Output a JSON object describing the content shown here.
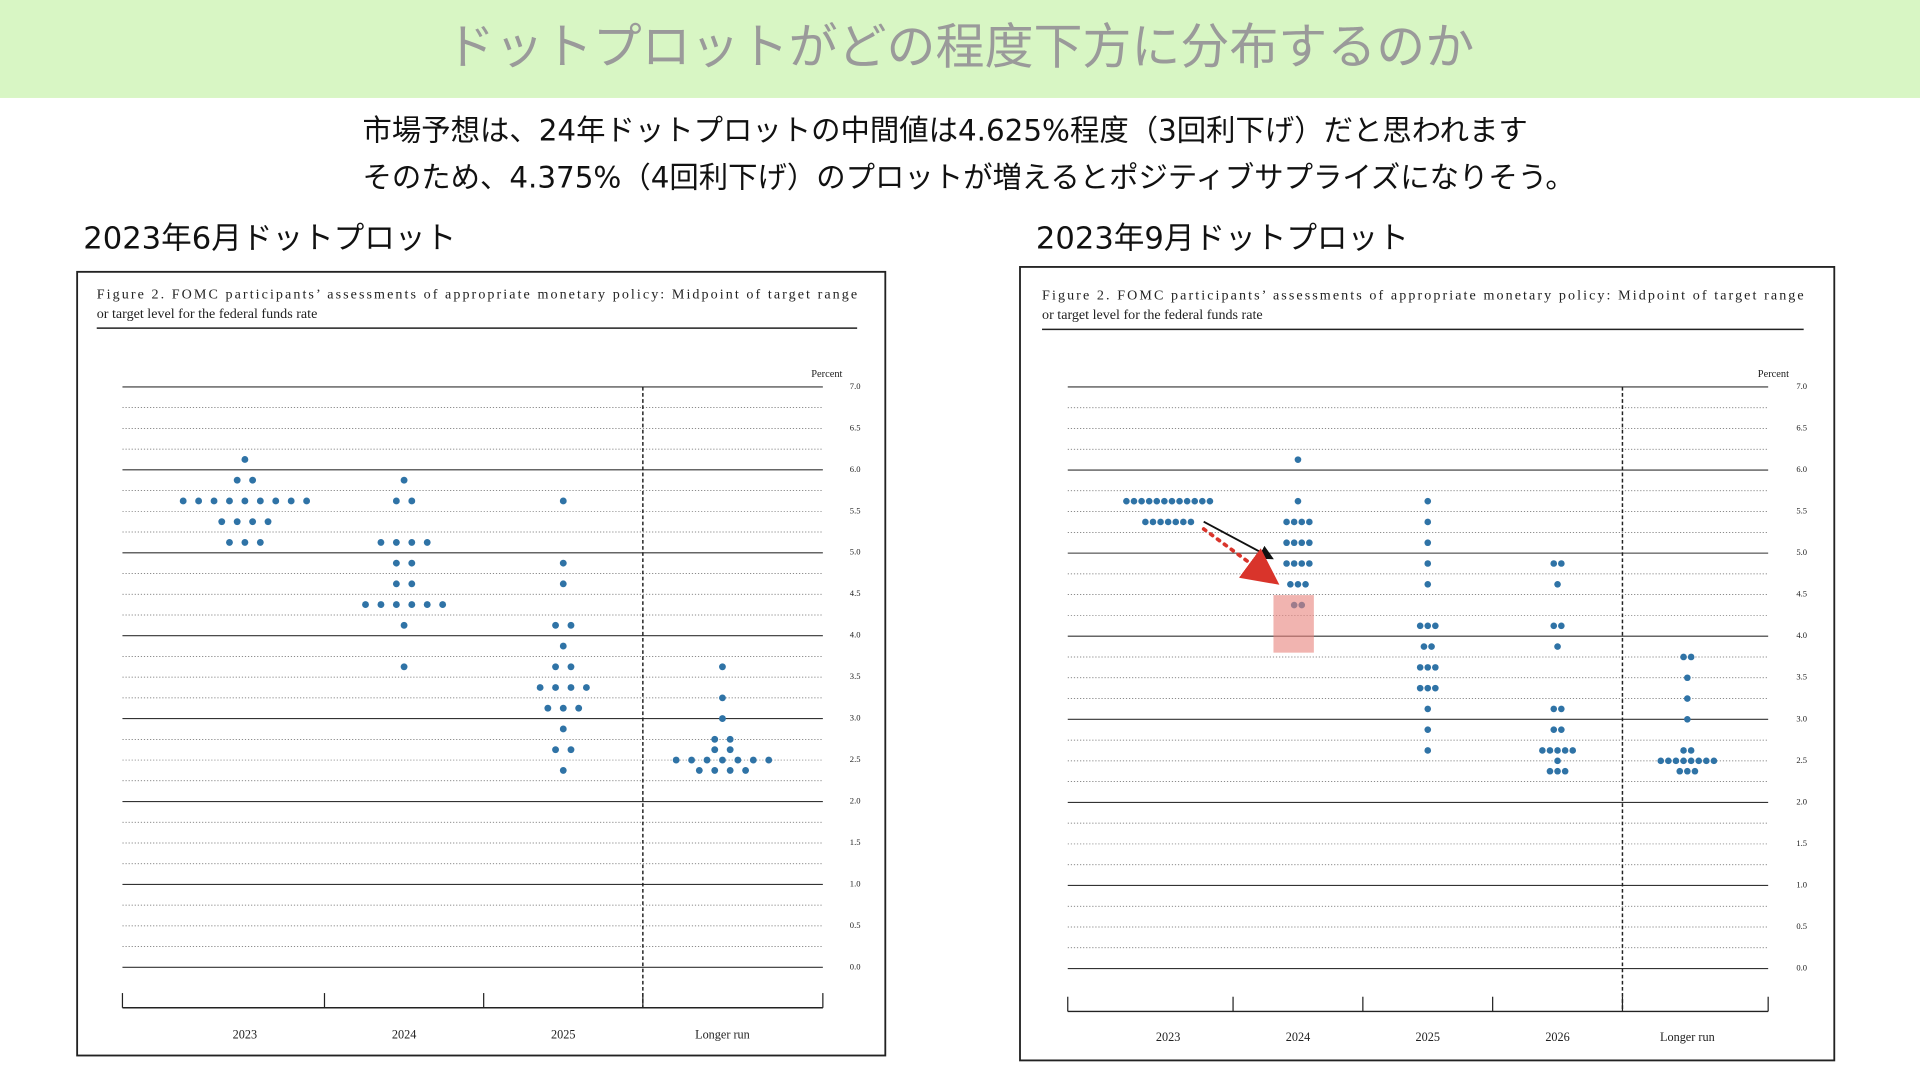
{
  "header": {
    "title": "ドットプロットがどの程度下方に分布するのか",
    "lines": [
      "市場予想は、24年ドットプロットの中間値は4.625%程度（3回利下げ）だと思われます",
      "そのため、4.375%（4回利下げ）のプロットが増えるとポジティブサプライズになりそう。"
    ]
  },
  "chart_data": [
    {
      "type": "dot",
      "title": "2023年6月ドットプロット",
      "figure_title": [
        "Figure 2.  FOMC participants’ assessments of appropriate monetary policy:  Midpoint of target range",
        "or target level for the federal funds rate"
      ],
      "ylabel": "Percent",
      "color": "#2f73a6",
      "categories": [
        "2023",
        "2024",
        "2025",
        "Longer run"
      ],
      "values": [
        [
          6.125,
          5.875,
          5.875,
          5.625,
          5.625,
          5.625,
          5.625,
          5.625,
          5.625,
          5.625,
          5.625,
          5.625,
          5.375,
          5.375,
          5.375,
          5.375,
          5.125,
          5.125,
          5.125
        ],
        [
          5.875,
          5.625,
          5.625,
          5.125,
          5.125,
          5.125,
          5.125,
          4.875,
          4.875,
          4.625,
          4.625,
          4.375,
          4.375,
          4.375,
          4.375,
          4.375,
          4.375,
          4.125,
          3.625
        ],
        [
          5.625,
          4.875,
          4.625,
          4.125,
          4.125,
          3.875,
          3.625,
          3.625,
          3.375,
          3.375,
          3.375,
          3.375,
          3.125,
          3.125,
          3.125,
          2.875,
          2.625,
          2.625,
          2.375
        ],
        [
          3.625,
          3.25,
          3.0,
          2.75,
          2.75,
          2.625,
          2.625,
          2.5,
          2.5,
          2.5,
          2.5,
          2.5,
          2.5,
          2.5,
          2.375,
          2.375,
          2.375,
          2.375
        ]
      ],
      "ylim": [
        0,
        7
      ],
      "yticks": [
        {
          "value": 0,
          "label": "0.0"
        },
        0.5,
        {
          "value": 1,
          "label": "1.0"
        },
        1.5,
        {
          "value": 2,
          "label": "2.0"
        },
        2.5,
        {
          "value": 3,
          "label": "3.0"
        },
        3.5,
        {
          "value": 4,
          "label": "4.0"
        },
        4.5,
        {
          "value": 5,
          "label": "5.0"
        },
        5.5,
        {
          "value": 6,
          "label": "6.0"
        },
        6.5,
        {
          "value": 7,
          "label": "7.0"
        }
      ],
      "grid": true
    },
    {
      "type": "dot",
      "title": "2023年9月ドットプロット",
      "figure_title": [
        "Figure 2.  FOMC participants’ assessments of appropriate monetary policy:  Midpoint of target range",
        "or target level for the federal funds rate"
      ],
      "ylabel": "Percent",
      "color": "#2f73a6",
      "categories": [
        "2023",
        "2024",
        "2025",
        "2026",
        "Longer run"
      ],
      "values": [
        [
          5.625,
          5.625,
          5.625,
          5.625,
          5.625,
          5.625,
          5.625,
          5.625,
          5.625,
          5.625,
          5.625,
          5.625,
          5.375,
          5.375,
          5.375,
          5.375,
          5.375,
          5.375,
          5.375
        ],
        [
          6.125,
          5.625,
          5.375,
          5.375,
          5.375,
          5.375,
          5.125,
          5.125,
          5.125,
          5.125,
          4.875,
          4.875,
          4.875,
          4.875,
          4.625,
          4.625,
          4.625,
          4.375,
          4.375
        ],
        [
          5.625,
          5.375,
          5.125,
          4.875,
          4.625,
          4.125,
          4.125,
          4.125,
          3.875,
          3.875,
          3.625,
          3.625,
          3.625,
          3.375,
          3.375,
          3.375,
          3.125,
          2.875,
          2.625
        ],
        [
          4.875,
          4.875,
          4.625,
          4.125,
          4.125,
          3.875,
          3.125,
          3.125,
          2.875,
          2.875,
          2.625,
          2.625,
          2.625,
          2.625,
          2.625,
          2.5,
          2.375,
          2.375,
          2.375
        ],
        [
          3.75,
          3.75,
          3.5,
          3.25,
          3.0,
          2.625,
          2.625,
          2.5,
          2.5,
          2.5,
          2.5,
          2.5,
          2.5,
          2.5,
          2.5,
          2.375,
          2.375,
          2.375
        ]
      ],
      "ylim": [
        0,
        7
      ],
      "yticks": [
        {
          "value": 0,
          "label": "0.0"
        },
        0.5,
        {
          "value": 1,
          "label": "1.0"
        },
        1.5,
        {
          "value": 2,
          "label": "2.0"
        },
        2.5,
        {
          "value": 3,
          "label": "3.0"
        },
        3.5,
        {
          "value": 4,
          "label": "4.0"
        },
        4.5,
        {
          "value": 5,
          "label": "5.0"
        },
        5.5,
        {
          "value": 6,
          "label": "6.0"
        },
        6.5,
        {
          "value": 7,
          "label": "7.0"
        }
      ],
      "grid": true
    }
  ]
}
